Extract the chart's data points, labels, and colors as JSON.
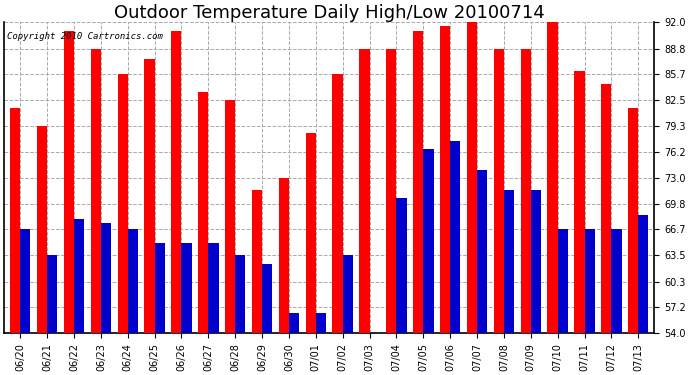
{
  "title": "Outdoor Temperature Daily High/Low 20100714",
  "copyright_text": "Copyright 2010 Cartronics.com",
  "dates": [
    "06/20",
    "06/21",
    "06/22",
    "06/23",
    "06/24",
    "06/25",
    "06/26",
    "06/27",
    "06/28",
    "06/29",
    "06/30",
    "07/01",
    "07/02",
    "07/03",
    "07/04",
    "07/05",
    "07/06",
    "07/07",
    "07/08",
    "07/09",
    "07/10",
    "07/11",
    "07/12",
    "07/13"
  ],
  "highs": [
    81.5,
    79.3,
    91.0,
    88.8,
    85.7,
    87.5,
    91.0,
    83.5,
    82.5,
    71.5,
    73.0,
    78.5,
    85.7,
    88.8,
    88.8,
    91.0,
    91.5,
    92.0,
    88.8,
    88.8,
    92.0,
    86.0,
    84.5,
    81.5
  ],
  "lows": [
    66.7,
    63.5,
    68.0,
    67.5,
    66.7,
    65.0,
    65.0,
    65.0,
    63.5,
    62.5,
    56.5,
    56.5,
    63.5,
    54.0,
    70.5,
    76.5,
    77.5,
    74.0,
    71.5,
    71.5,
    66.7,
    66.7,
    66.7,
    68.5
  ],
  "high_color": "#ff0000",
  "low_color": "#0000cc",
  "background_color": "#ffffff",
  "grid_color": "#aaaaaa",
  "ymin": 54.0,
  "ymax": 92.0,
  "yticks": [
    54.0,
    57.2,
    60.3,
    63.5,
    66.7,
    69.8,
    73.0,
    76.2,
    79.3,
    82.5,
    85.7,
    88.8,
    92.0
  ],
  "bar_width": 0.38,
  "title_fontsize": 13,
  "tick_fontsize": 7,
  "copyright_fontsize": 6.5
}
